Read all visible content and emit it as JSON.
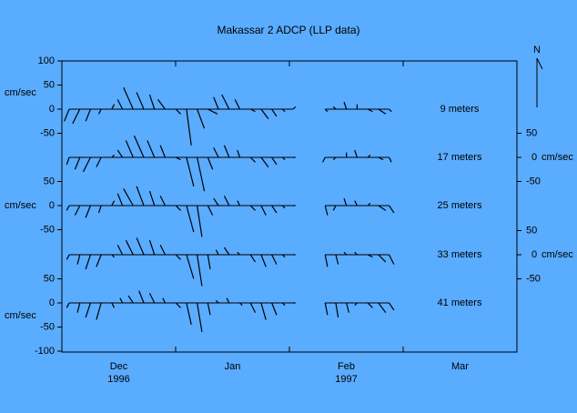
{
  "chart_data": {
    "type": "stick",
    "title": "Makassar 2 ADCP (LLP data)",
    "categories": [
      "Dec",
      "Jan",
      "Feb",
      "Mar"
    ],
    "year_labels": [
      "1996",
      "1997"
    ],
    "north_label": "N",
    "unit": "cm/sec",
    "color": "#000000",
    "series": [
      {
        "name": "9 meters",
        "tick_side": "left",
        "yticks": [
          100,
          50,
          0,
          -50
        ],
        "v": [
          -25,
          -30,
          -25,
          -10,
          10,
          20,
          45,
          35,
          30,
          20,
          -10,
          -75,
          -40,
          -10,
          25,
          30,
          20,
          -5,
          -20,
          -15,
          -5,
          5,
          null,
          null,
          -5,
          5,
          15,
          10,
          -5,
          -10,
          -5
        ],
        "u": [
          -10,
          -15,
          -10,
          -5,
          5,
          -10,
          -20,
          -15,
          -10,
          -15,
          10,
          10,
          15,
          20,
          -10,
          -15,
          -10,
          10,
          15,
          10,
          5,
          5,
          null,
          null,
          5,
          -5,
          -5,
          0,
          10,
          15,
          5
        ]
      },
      {
        "name": "17 meters",
        "tick_side": "right",
        "yticks": [
          50,
          0,
          -50
        ],
        "v": [
          -15,
          -25,
          -30,
          -20,
          5,
          15,
          35,
          45,
          35,
          25,
          -5,
          -60,
          -70,
          -25,
          20,
          25,
          15,
          -10,
          -20,
          -15,
          -5,
          0,
          null,
          null,
          -10,
          -5,
          10,
          15,
          5,
          -5,
          -10
        ],
        "u": [
          -5,
          -10,
          -15,
          -10,
          5,
          -10,
          -15,
          -20,
          -15,
          -10,
          10,
          15,
          15,
          10,
          -10,
          -10,
          -5,
          10,
          15,
          10,
          5,
          5,
          null,
          null,
          -5,
          -5,
          0,
          -5,
          5,
          10,
          5
        ]
      },
      {
        "name": "25 meters",
        "tick_side": "left",
        "yticks": [
          50,
          0,
          -50
        ],
        "v": [
          -10,
          -20,
          -25,
          -15,
          10,
          25,
          35,
          40,
          30,
          20,
          -10,
          -55,
          -65,
          -20,
          15,
          20,
          10,
          -10,
          -20,
          -15,
          -5,
          0,
          null,
          null,
          -20,
          -10,
          15,
          10,
          5,
          -10,
          -15
        ],
        "u": [
          -5,
          -10,
          -10,
          -5,
          5,
          -10,
          -20,
          -15,
          -10,
          -10,
          10,
          15,
          10,
          10,
          -10,
          -10,
          -5,
          10,
          10,
          10,
          5,
          5,
          null,
          null,
          5,
          -5,
          -5,
          -5,
          5,
          15,
          10
        ]
      },
      {
        "name": "33 meters",
        "tick_side": "right",
        "yticks": [
          50,
          0,
          -50
        ],
        "v": [
          -10,
          -20,
          -30,
          -25,
          -5,
          20,
          30,
          35,
          30,
          20,
          -10,
          -50,
          -65,
          -30,
          10,
          15,
          5,
          -15,
          -25,
          -20,
          -5,
          0,
          null,
          null,
          -25,
          -20,
          5,
          5,
          -5,
          -15,
          -20
        ],
        "u": [
          -5,
          -5,
          -10,
          -10,
          5,
          -10,
          -15,
          -15,
          -10,
          -10,
          10,
          15,
          10,
          5,
          -5,
          -10,
          -5,
          10,
          10,
          10,
          5,
          5,
          null,
          null,
          5,
          5,
          -5,
          -5,
          10,
          15,
          10
        ]
      },
      {
        "name": "41 meters",
        "tick_side": "left",
        "yticks": [
          50,
          0,
          -50,
          -100
        ],
        "v": [
          -10,
          -20,
          -30,
          -35,
          -10,
          10,
          15,
          25,
          20,
          10,
          -10,
          -45,
          -60,
          -25,
          5,
          10,
          -5,
          -20,
          -35,
          -25,
          -5,
          0,
          null,
          null,
          -25,
          -30,
          -20,
          -5,
          -10,
          -20,
          -15
        ],
        "u": [
          -5,
          -5,
          -10,
          -10,
          5,
          -5,
          -10,
          -10,
          -10,
          -5,
          10,
          10,
          10,
          5,
          -5,
          -5,
          5,
          10,
          10,
          10,
          5,
          5,
          null,
          null,
          5,
          5,
          5,
          -5,
          10,
          15,
          10
        ]
      }
    ]
  }
}
